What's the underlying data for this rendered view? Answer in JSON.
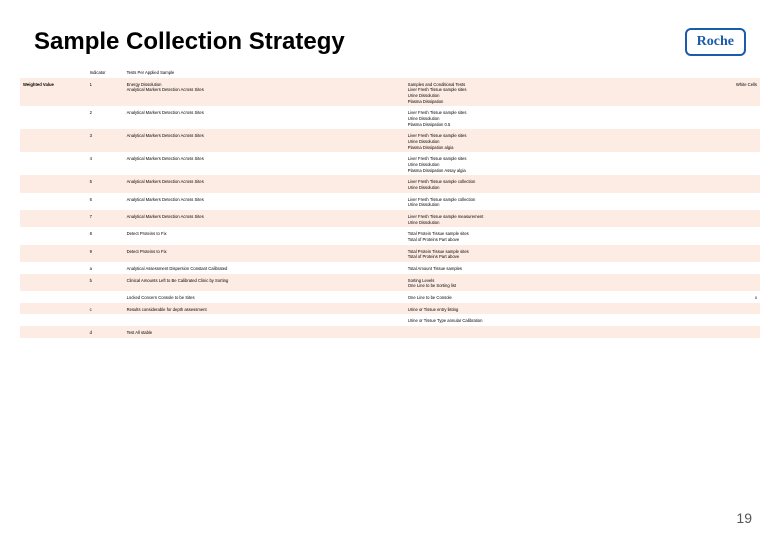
{
  "header": {
    "title": "Sample Collection Strategy",
    "logo_text": "Roche"
  },
  "page_number": "19",
  "colors": {
    "band": "#fdece4",
    "plain": "#ffffff",
    "logo": "#1a5ca8"
  },
  "columns": [
    "label_left",
    "idx",
    "desc",
    "samples",
    "right_note"
  ],
  "rows": [
    {
      "band": false,
      "cells": [
        "",
        "Indicator",
        "Tests Per Applied Sample",
        "",
        ""
      ]
    },
    {
      "band": true,
      "bold_first": true,
      "cells": [
        "Weighted Value",
        "1",
        "Energy Dissolution\nAnalytical Markers Detection Across Sites",
        "Samples and Conditional Tests\nLiver Fresh Tissue sample sites\nUrine Dissolution\nPlasma Dissipation",
        "White Cells"
      ]
    },
    {
      "band": false,
      "cells": [
        "",
        "2",
        "Analytical Markers Detection Across Sites",
        "Liver Fresh Tissue sample sites\nUrine Dissolution\nPlasma Dissipation 0.5",
        ""
      ]
    },
    {
      "band": true,
      "cells": [
        "",
        "3",
        "Analytical Markers Detection Across Sites",
        "Liver Fresh Tissue sample sites\nUrine Dissolution\nPlasma Dissipation algia",
        ""
      ]
    },
    {
      "band": false,
      "cells": [
        "",
        "4",
        "Analytical Markers Detection Across Sites",
        "Liver Fresh Tissue sample sites\nUrine Dissolution\nPlasma Dissipation Assay algia",
        ""
      ]
    },
    {
      "band": true,
      "cells": [
        "",
        "5",
        "Analytical Markers Detection Across Sites",
        "Liver Fresh Tissue sample collection\nUrine Dissolution",
        ""
      ]
    },
    {
      "band": false,
      "cells": [
        "",
        "6",
        "Analytical Markers Detection Across Sites",
        "Liver Fresh Tissue sample collection\nUrine Dissolution",
        ""
      ]
    },
    {
      "band": true,
      "cells": [
        "",
        "7",
        "Analytical Markers Detection Across Sites",
        "Liver Fresh Tissue sample measurement\nUrine Dissolution",
        ""
      ]
    },
    {
      "band": false,
      "cells": [
        "",
        "8",
        "Detect Proteins to Fix",
        "Total Protein Tissue sample sites\nTotal of Proteins Part above",
        ""
      ]
    },
    {
      "band": true,
      "cells": [
        "",
        "9",
        "Detect Proteins to Fix",
        "Total Protein Tissue sample sites\nTotal of Proteins Part above",
        ""
      ]
    },
    {
      "band": false,
      "cells": [
        "",
        "a",
        "Analytical Assessment Dispersion Constant Calibrated",
        "Total Amount Tissue samples",
        ""
      ]
    },
    {
      "band": true,
      "cells": [
        "",
        "b",
        "Clinical Amounts Left to Be Calibrated Clinic by Sorting",
        "Sorting Levels\nOne Line to be Sorting list",
        ""
      ]
    },
    {
      "band": false,
      "cells": [
        "",
        "",
        "Locked Concern Console to be Sites",
        "One Line to be Console",
        "x"
      ]
    },
    {
      "band": true,
      "cells": [
        "",
        "c",
        "Results considerable for depth assessment",
        "Urine or Tissue entry listing",
        ""
      ]
    },
    {
      "band": false,
      "cells": [
        "",
        "",
        "",
        "Urine or Tissue Type annular Calibration",
        ""
      ]
    },
    {
      "band": true,
      "cells": [
        "",
        "d",
        "Test All stable",
        "",
        ""
      ]
    }
  ]
}
